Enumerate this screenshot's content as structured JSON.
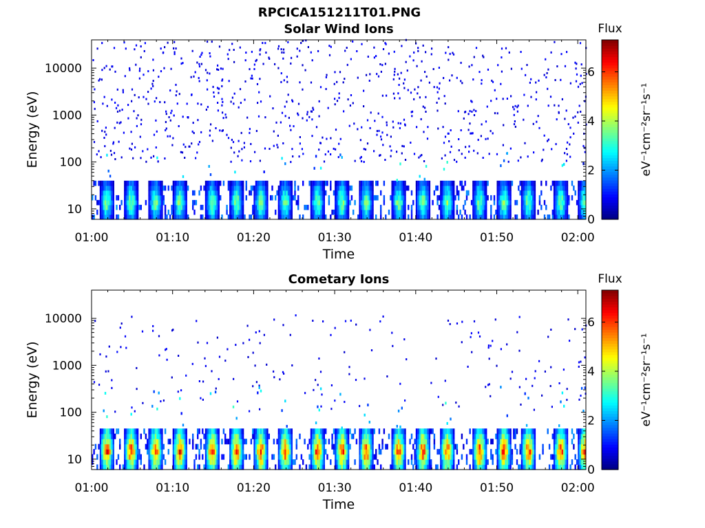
{
  "chart_data": [
    {
      "type": "heatmap",
      "suptitle": "RPCICA151211T01.PNG",
      "title": "Solar Wind Ions",
      "xlabel": "Time",
      "ylabel": "Energy (eV)",
      "x_ticks": [
        "01:00",
        "01:10",
        "01:20",
        "01:30",
        "01:40",
        "01:50",
        "02:00"
      ],
      "xlim": [
        "01:00",
        "02:01"
      ],
      "y_scale": "log",
      "y_ticks": [
        "10",
        "100",
        "1000",
        "10000"
      ],
      "ylim": [
        6,
        40000
      ],
      "colorbar": {
        "title": "Flux",
        "label": "eV⁻¹cm⁻²sr⁻¹s⁻¹",
        "ticks": [
          "0",
          "2",
          "4",
          "6"
        ],
        "range": [
          0,
          7.3
        ],
        "colormap": "jet"
      },
      "features": {
        "background_scatter_log10_energy_range": [
          2.0,
          4.6
        ],
        "background_flux": 0.5,
        "band_energy_range_eV": [
          6,
          40
        ],
        "band_peak_flux": 4.0,
        "burst_period_minutes": 3.3,
        "burst_start_times": [
          "01:01",
          "01:04",
          "01:07",
          "01:10",
          "01:14",
          "01:17",
          "01:20",
          "01:23",
          "01:27",
          "01:30",
          "01:33",
          "01:37",
          "01:40",
          "01:43",
          "01:47",
          "01:50",
          "01:53",
          "01:57",
          "02:00"
        ]
      }
    },
    {
      "type": "heatmap",
      "title": "Cometary Ions",
      "xlabel": "Time",
      "ylabel": "Energy (eV)",
      "x_ticks": [
        "01:00",
        "01:10",
        "01:20",
        "01:30",
        "01:40",
        "01:50",
        "02:00"
      ],
      "xlim": [
        "01:00",
        "02:01"
      ],
      "y_scale": "log",
      "y_ticks": [
        "10",
        "100",
        "1000",
        "10000"
      ],
      "ylim": [
        6,
        40000
      ],
      "colorbar": {
        "title": "Flux",
        "label": "eV⁻¹cm⁻²sr⁻¹s⁻¹",
        "ticks": [
          "0",
          "2",
          "4",
          "6"
        ],
        "range": [
          0,
          7.3
        ],
        "colormap": "jet"
      },
      "features": {
        "background_scatter_log10_energy_range": [
          2.0,
          4.1
        ],
        "background_flux": 0.5,
        "band_energy_range_eV": [
          6,
          45
        ],
        "band_peak_flux": 6.5,
        "burst_period_minutes": 3.3,
        "burst_start_times": [
          "01:01",
          "01:04",
          "01:07",
          "01:10",
          "01:14",
          "01:17",
          "01:20",
          "01:23",
          "01:27",
          "01:30",
          "01:33",
          "01:37",
          "01:40",
          "01:43",
          "01:47",
          "01:50",
          "01:53",
          "01:57",
          "02:00"
        ]
      }
    }
  ]
}
